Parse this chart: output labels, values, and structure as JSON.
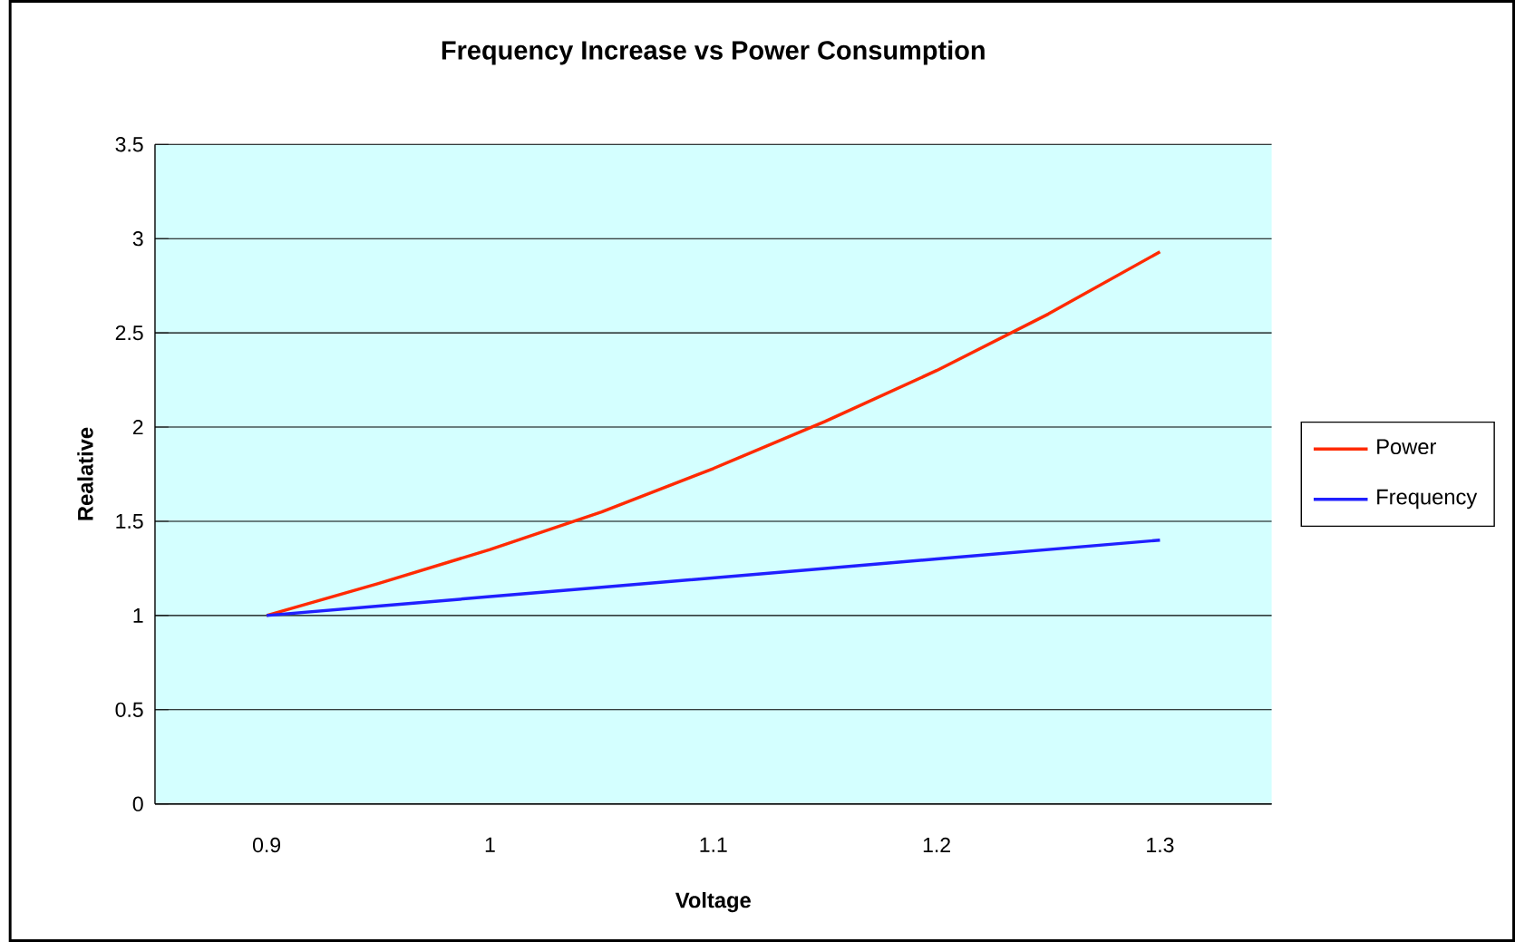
{
  "chart_data": {
    "type": "line",
    "title": "Frequency Increase vs Power Consumption",
    "xlabel": "Voltage",
    "ylabel": "Realative",
    "categories": [
      "0.9",
      null,
      "1",
      null,
      "1.1",
      null,
      "1.2",
      null,
      "1.3"
    ],
    "series": [
      {
        "name": "Power",
        "color": "#ff2a00",
        "values": [
          1,
          1.17,
          1.35,
          1.55,
          1.78,
          2.03,
          2.3,
          2.6,
          2.93
        ]
      },
      {
        "name": "Frequency",
        "color": "#2020ff",
        "values": [
          1,
          1.05,
          1.1,
          1.15,
          1.2,
          1.25,
          1.3,
          1.35,
          1.4
        ]
      }
    ],
    "ylim": [
      0,
      3.5
    ],
    "yticks": [
      0,
      0.5,
      1,
      1.5,
      2,
      2.5,
      3,
      3.5
    ],
    "grid": "y",
    "legend": "right",
    "marker": "none",
    "line_style": "solid"
  }
}
